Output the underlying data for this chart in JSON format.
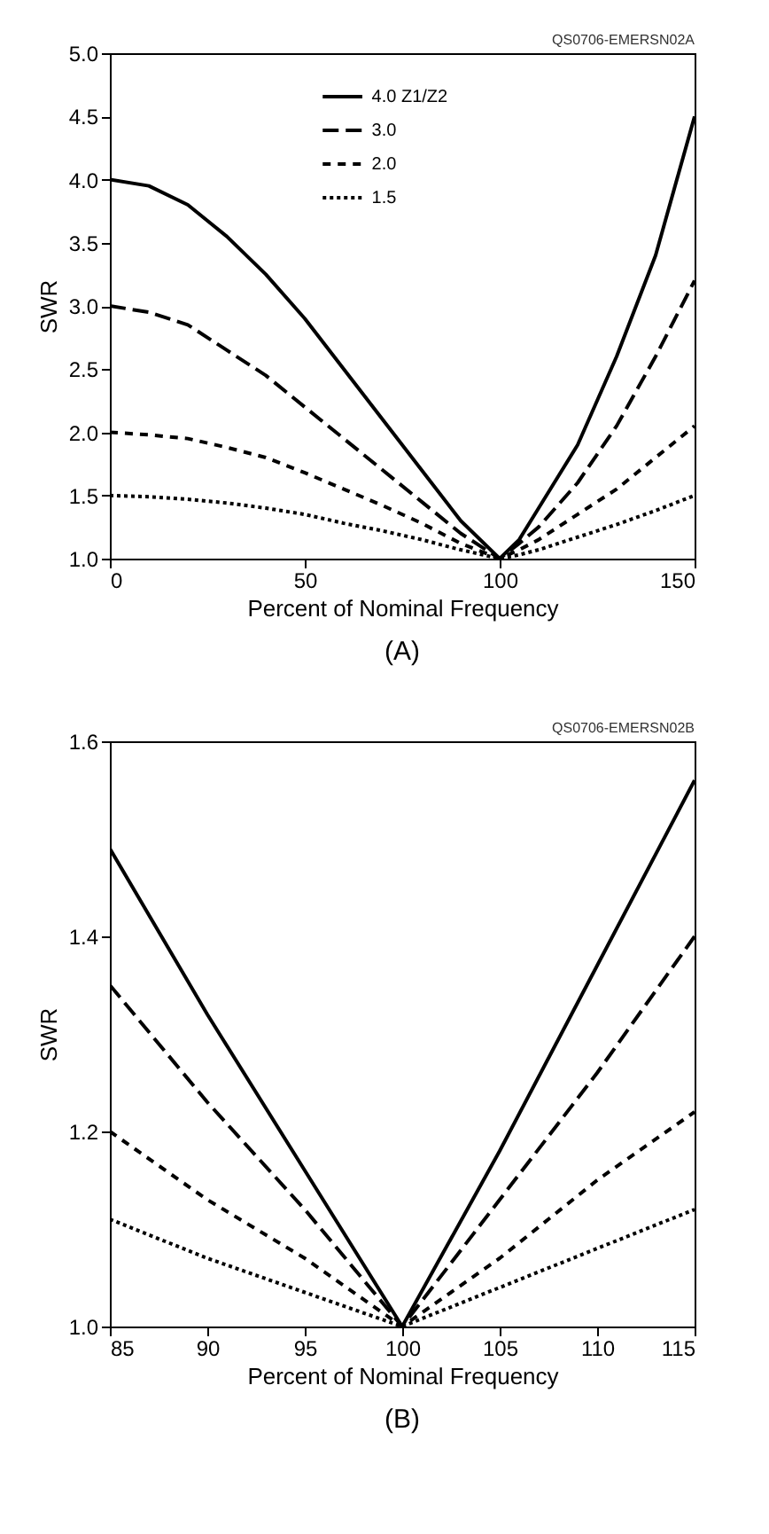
{
  "chart_data": [
    {
      "type": "line",
      "title": "(A)",
      "xlabel": "Percent of Nominal Frequency",
      "ylabel": "SWR",
      "annotations": [
        "QS0706-EMERSN02A"
      ],
      "legend": "top",
      "marker": "none",
      "xlim": [
        0,
        150
      ],
      "xticks": [
        0,
        50,
        100,
        150
      ],
      "ylim": [
        1,
        5
      ],
      "yticks": [
        {
          "value": 1,
          "label": "1.0"
        },
        1.5,
        {
          "value": 2,
          "label": "2.0"
        },
        2.5,
        {
          "value": 3,
          "label": "3.0"
        },
        3.5,
        {
          "value": 4,
          "label": "4.0"
        },
        4.5,
        {
          "value": 5,
          "label": "5.0"
        }
      ],
      "x": [
        0,
        10,
        20,
        30,
        40,
        50,
        60,
        70,
        80,
        90,
        100,
        105,
        110,
        120,
        130,
        140,
        150
      ],
      "series": [
        {
          "name": "4.0 Z1/Z2",
          "color": "#000000",
          "line_style": "solid",
          "values": [
            4.0,
            3.95,
            3.8,
            3.55,
            3.25,
            2.9,
            2.5,
            2.1,
            1.7,
            1.3,
            1.0,
            1.15,
            1.4,
            1.9,
            2.6,
            3.4,
            4.5
          ]
        },
        {
          "name": "3.0",
          "color": "#000000",
          "line_style": "dashed",
          "values": [
            3.0,
            2.95,
            2.85,
            2.65,
            2.45,
            2.2,
            1.95,
            1.7,
            1.45,
            1.2,
            1.0,
            1.12,
            1.25,
            1.6,
            2.05,
            2.6,
            3.2
          ]
        },
        {
          "name": "2.0",
          "color": "#000000",
          "line_style": "dashed",
          "values": [
            2.0,
            1.98,
            1.95,
            1.88,
            1.8,
            1.68,
            1.55,
            1.42,
            1.28,
            1.12,
            1.0,
            1.07,
            1.15,
            1.35,
            1.55,
            1.8,
            2.05
          ]
        },
        {
          "name": "1.5",
          "color": "#000000",
          "line_style": "dotted",
          "values": [
            1.5,
            1.49,
            1.47,
            1.44,
            1.4,
            1.35,
            1.28,
            1.22,
            1.15,
            1.07,
            1.0,
            1.03,
            1.07,
            1.17,
            1.27,
            1.38,
            1.5
          ]
        }
      ]
    },
    {
      "type": "line",
      "title": "(B)",
      "xlabel": "Percent of Nominal Frequency",
      "ylabel": "SWR",
      "annotations": [
        "QS0706-EMERSN02B"
      ],
      "legend": "top",
      "marker": "none",
      "xlim": [
        85,
        115
      ],
      "xticks": [
        85,
        90,
        95,
        100,
        105,
        110,
        115
      ],
      "ylim": [
        1,
        1.6
      ],
      "yticks": [
        {
          "value": 1,
          "label": "1.0"
        },
        1.2,
        1.4,
        1.6
      ],
      "x": [
        85,
        90,
        95,
        100,
        105,
        110,
        115
      ],
      "series": [
        {
          "name": "4.0 Z1/Z2",
          "color": "#000000",
          "line_style": "solid",
          "values": [
            1.49,
            1.32,
            1.16,
            1.0,
            1.18,
            1.37,
            1.56
          ]
        },
        {
          "name": "3.0",
          "color": "#000000",
          "line_style": "dashed",
          "values": [
            1.35,
            1.23,
            1.12,
            1.0,
            1.13,
            1.26,
            1.4
          ]
        },
        {
          "name": "2.0",
          "color": "#000000",
          "line_style": "dashed",
          "values": [
            1.2,
            1.13,
            1.07,
            1.0,
            1.07,
            1.15,
            1.22
          ]
        },
        {
          "name": "1.5",
          "color": "#000000",
          "line_style": "dotted",
          "values": [
            1.11,
            1.07,
            1.035,
            1.0,
            1.04,
            1.08,
            1.12
          ]
        }
      ]
    }
  ]
}
